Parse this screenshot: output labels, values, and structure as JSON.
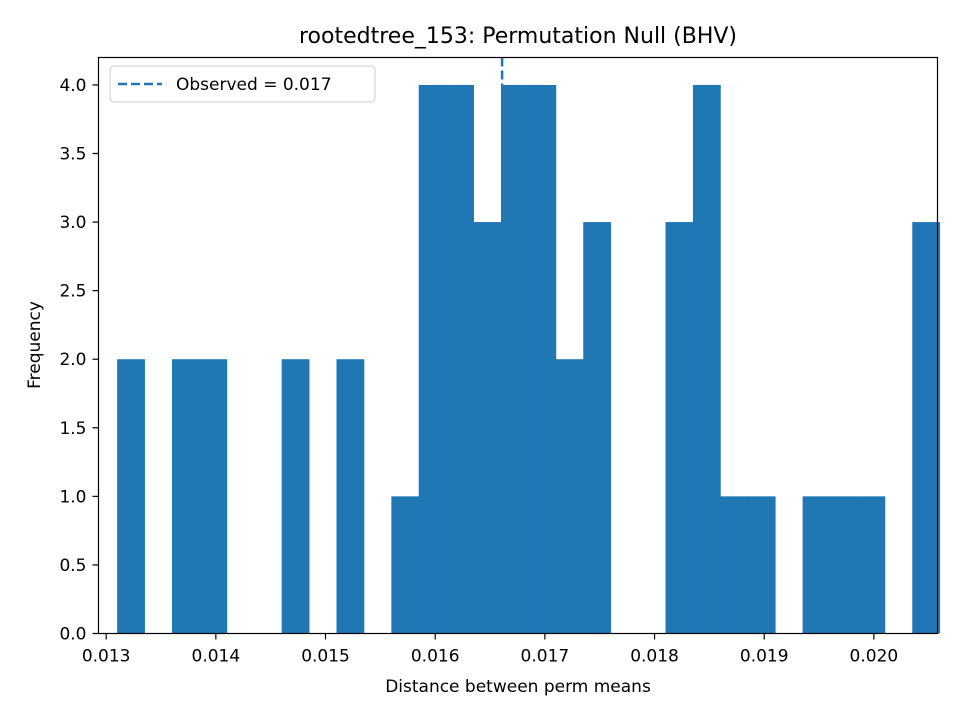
{
  "chart_data": {
    "type": "bar",
    "title": "rootedtree_153: Permutation Null (BHV)",
    "xlabel": "Distance between perm means",
    "ylabel": "Frequency",
    "xlim": [
      0.01293,
      0.02058
    ],
    "ylim": [
      0,
      4.2
    ],
    "xticks": [
      "0.013",
      "0.014",
      "0.015",
      "0.016",
      "0.017",
      "0.018",
      "0.019",
      "0.020"
    ],
    "xtick_values": [
      0.013,
      0.014,
      0.015,
      0.016,
      0.017,
      0.018,
      0.019,
      0.02
    ],
    "yticks": [
      "0.0",
      "0.5",
      "1.0",
      "1.5",
      "2.0",
      "2.5",
      "3.0",
      "3.5",
      "4.0"
    ],
    "ytick_values": [
      0,
      0.5,
      1,
      1.5,
      2,
      2.5,
      3,
      3.5,
      4
    ],
    "bin_start": 0.0131,
    "bin_width": 0.00025,
    "values": [
      2,
      0,
      2,
      2,
      0,
      0,
      2,
      0,
      2,
      0,
      1,
      4,
      4,
      3,
      4,
      4,
      2,
      3,
      0,
      0,
      3,
      4,
      1,
      1,
      0,
      1,
      1,
      1,
      0,
      3
    ],
    "color": "#1f77b4",
    "observed": {
      "value": 0.01661,
      "label": "Observed = 0.017",
      "style": "dashed",
      "color": "#1f77b4"
    },
    "legend_position": "top-left",
    "grid": false
  }
}
